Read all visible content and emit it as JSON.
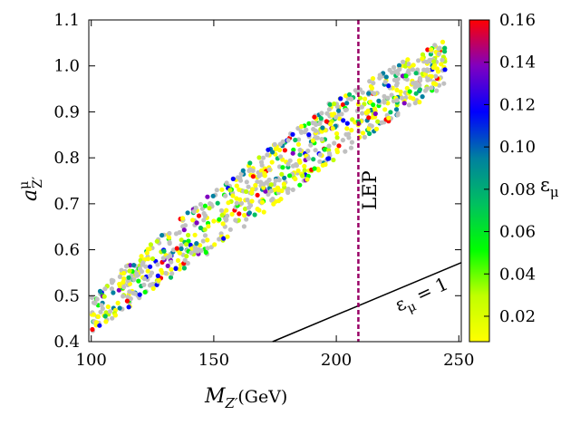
{
  "chart_data": {
    "type": "scatter",
    "x_axis": {
      "label_main": "M",
      "label_sub": "Z′",
      "label_unit": "(GeV)",
      "range": [
        99,
        251
      ],
      "ticks": [
        "100",
        "150",
        "200",
        "250"
      ]
    },
    "y_axis": {
      "label_main": "a",
      "label_sup": "μ",
      "label_sub": "Z′",
      "range": [
        0.4,
        1.1
      ],
      "ticks": [
        "0.4",
        "0.5",
        "0.6",
        "0.7",
        "0.8",
        "0.9",
        "1.0",
        "1.1"
      ]
    },
    "colorbar": {
      "label_main": "ε",
      "label_sub": "μ",
      "range": [
        0.008,
        0.16
      ],
      "ticks": [
        "0.02",
        "0.04",
        "0.06",
        "0.08",
        "0.10",
        "0.12",
        "0.14",
        "0.16"
      ],
      "colors": [
        "#ffff00",
        "#c0ff00",
        "#00ff00",
        "#00c060",
        "#0080a0",
        "#0000ff",
        "#8000c0",
        "#ff0000"
      ]
    },
    "lep_line": {
      "x": 209,
      "label": "LEP",
      "color": "#990066"
    },
    "eps_line": {
      "label": "ε",
      "label_sub": "μ",
      "label_rest": " = 1",
      "x": [
        174,
        251
      ],
      "y": [
        0.4,
        0.572
      ],
      "color": "#000000"
    },
    "scatter_band": {
      "x_range": [
        100,
        245
      ],
      "lower_edge": [
        [
          100,
          0.42
        ],
        [
          150,
          0.6
        ],
        [
          200,
          0.8
        ],
        [
          245,
          0.96
        ]
      ],
      "upper_edge": [
        [
          100,
          0.5
        ],
        [
          150,
          0.73
        ],
        [
          200,
          0.93
        ],
        [
          245,
          1.06
        ]
      ],
      "grey_color": "#c0c0c0",
      "point_count": 900
    }
  }
}
